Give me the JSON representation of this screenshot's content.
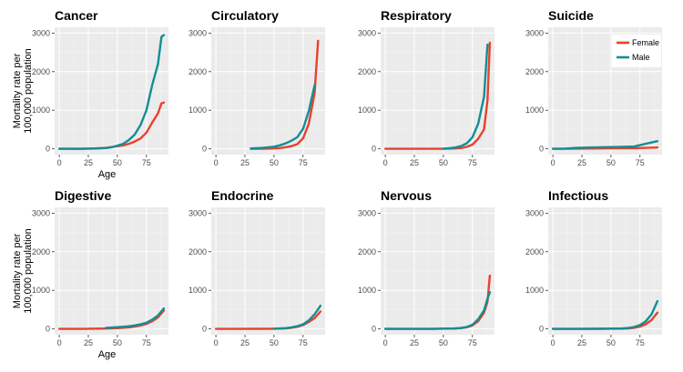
{
  "chart_data": {
    "type": "line",
    "ylabel": "Mortality rate per\n100,000 population",
    "xlabel": "Age",
    "xlim": [
      -4,
      94
    ],
    "ylim": [
      -150,
      3150
    ],
    "x_ticks": [
      0,
      25,
      50,
      75
    ],
    "y_ticks": [
      0,
      1000,
      2000,
      3000
    ],
    "grid": true,
    "legend_position": "top-right",
    "colors": {
      "Female": "#e8412e",
      "Male": "#138e94"
    },
    "legend": [
      {
        "name": "Female",
        "color": "#e8412e"
      },
      {
        "name": "Male",
        "color": "#138e94"
      }
    ],
    "panels": [
      {
        "title": "Cancer",
        "series": [
          {
            "name": "Female",
            "x": [
              0,
              10,
              20,
              30,
              40,
              45,
              50,
              55,
              60,
              65,
              70,
              75,
              80,
              85,
              88,
              90
            ],
            "values": [
              0,
              0,
              2,
              10,
              25,
              45,
              70,
              90,
              130,
              190,
              270,
              420,
              680,
              920,
              1180,
              1200
            ]
          },
          {
            "name": "Male",
            "x": [
              0,
              10,
              20,
              30,
              40,
              45,
              50,
              55,
              60,
              65,
              70,
              75,
              80,
              85,
              88,
              90
            ],
            "values": [
              0,
              0,
              2,
              8,
              20,
              40,
              80,
              130,
              230,
              370,
              620,
              1000,
              1650,
              2200,
              2900,
              2950
            ]
          }
        ]
      },
      {
        "title": "Circulatory",
        "series": [
          {
            "name": "Female",
            "x": [
              30,
              40,
              50,
              55,
              60,
              65,
              70,
              75,
              80,
              85,
              88
            ],
            "values": [
              0,
              2,
              10,
              20,
              40,
              70,
              120,
              270,
              650,
              1450,
              2800
            ]
          },
          {
            "name": "Male",
            "x": [
              30,
              40,
              50,
              55,
              60,
              65,
              70,
              75,
              80,
              85
            ],
            "values": [
              10,
              25,
              55,
              90,
              140,
              210,
              300,
              520,
              980,
              1650
            ]
          }
        ]
      },
      {
        "title": "Respiratory",
        "series": [
          {
            "name": "Female",
            "x": [
              0,
              20,
              40,
              50,
              55,
              60,
              65,
              70,
              75,
              80,
              85,
              88,
              90
            ],
            "values": [
              0,
              0,
              0,
              2,
              5,
              10,
              20,
              50,
              110,
              260,
              500,
              1250,
              2750
            ]
          },
          {
            "name": "Male",
            "x": [
              50,
              55,
              60,
              65,
              70,
              75,
              80,
              85,
              88
            ],
            "values": [
              5,
              15,
              35,
              70,
              140,
              300,
              650,
              1350,
              2700
            ]
          }
        ]
      },
      {
        "title": "Suicide",
        "series": [
          {
            "name": "Female",
            "x": [
              0,
              10,
              20,
              30,
              40,
              50,
              60,
              70,
              80,
              90
            ],
            "values": [
              0,
              2,
              5,
              8,
              10,
              12,
              15,
              18,
              25,
              35
            ]
          },
          {
            "name": "Male",
            "x": [
              0,
              10,
              20,
              30,
              40,
              50,
              60,
              70,
              80,
              90
            ],
            "values": [
              0,
              5,
              25,
              35,
              40,
              45,
              50,
              60,
              130,
              200
            ]
          }
        ]
      },
      {
        "title": "Digestive",
        "series": [
          {
            "name": "Female",
            "x": [
              0,
              20,
              40,
              50,
              60,
              65,
              70,
              75,
              80,
              85,
              90
            ],
            "values": [
              0,
              0,
              10,
              20,
              40,
              60,
              90,
              130,
              200,
              300,
              480
            ]
          },
          {
            "name": "Male",
            "x": [
              40,
              50,
              60,
              65,
              70,
              75,
              80,
              85,
              90
            ],
            "values": [
              25,
              45,
              70,
              90,
              120,
              160,
              240,
              350,
              530
            ]
          }
        ]
      },
      {
        "title": "Endocrine",
        "series": [
          {
            "name": "Female",
            "x": [
              0,
              20,
              40,
              50,
              60,
              65,
              70,
              75,
              80,
              85,
              90
            ],
            "values": [
              0,
              0,
              3,
              6,
              15,
              30,
              55,
              100,
              180,
              280,
              450
            ]
          },
          {
            "name": "Male",
            "x": [
              50,
              60,
              65,
              70,
              75,
              80,
              85,
              90
            ],
            "values": [
              5,
              20,
              40,
              70,
              120,
              220,
              380,
              600
            ]
          }
        ]
      },
      {
        "title": "Nervous",
        "series": [
          {
            "name": "Female",
            "x": [
              0,
              20,
              40,
              60,
              65,
              70,
              75,
              80,
              85,
              88,
              90
            ],
            "values": [
              0,
              0,
              2,
              10,
              20,
              40,
              90,
              200,
              420,
              700,
              1380
            ]
          },
          {
            "name": "Male",
            "x": [
              0,
              20,
              40,
              60,
              65,
              70,
              75,
              80,
              85,
              88,
              90
            ],
            "values": [
              0,
              0,
              2,
              12,
              25,
              50,
              110,
              250,
              480,
              780,
              950
            ]
          }
        ]
      },
      {
        "title": "Infectious",
        "series": [
          {
            "name": "Female",
            "x": [
              0,
              20,
              40,
              60,
              65,
              70,
              75,
              80,
              85,
              90
            ],
            "values": [
              0,
              0,
              3,
              8,
              15,
              30,
              60,
              120,
              230,
              420
            ]
          },
          {
            "name": "Male",
            "x": [
              0,
              20,
              40,
              60,
              65,
              70,
              75,
              80,
              85,
              90
            ],
            "values": [
              0,
              0,
              5,
              12,
              25,
              50,
              100,
              200,
              380,
              720
            ]
          }
        ]
      }
    ]
  }
}
